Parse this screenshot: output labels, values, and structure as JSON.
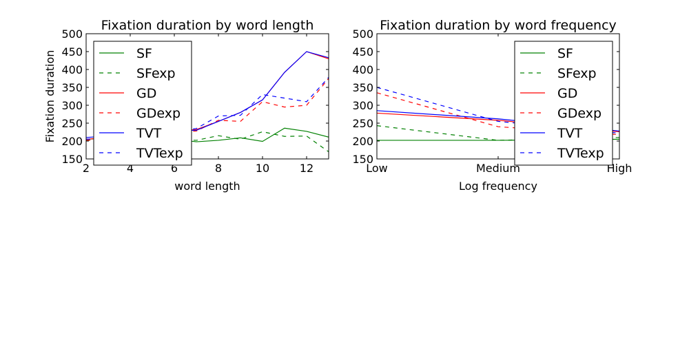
{
  "chart_data": [
    {
      "type": "line",
      "title": "Fixation duration by word length",
      "xlabel": "word length",
      "ylabel": "Fixation duration",
      "xlim": [
        2,
        13
      ],
      "ylim": [
        150,
        500
      ],
      "x_ticks": [
        2,
        4,
        6,
        8,
        10,
        12
      ],
      "y_ticks": [
        150,
        200,
        250,
        300,
        350,
        400,
        450,
        500
      ],
      "legend": "upper-left",
      "x": [
        2,
        3,
        4,
        5,
        6,
        7,
        8,
        9,
        10,
        11,
        12,
        13
      ],
      "series": [
        {
          "name": "SF",
          "color": "#008000",
          "dash": false,
          "values": [
            205,
            208,
            210,
            210,
            205,
            198,
            202,
            209,
            199,
            236,
            227,
            211
          ]
        },
        {
          "name": "SFexp",
          "color": "#008000",
          "dash": true,
          "values": [
            202,
            204,
            206,
            206,
            204,
            202,
            215,
            205,
            226,
            213,
            214,
            170
          ]
        },
        {
          "name": "GD",
          "color": "#ff0000",
          "dash": false,
          "values": [
            205,
            210,
            215,
            220,
            228,
            232,
            255,
            280,
            315,
            392,
            450,
            430
          ]
        },
        {
          "name": "GDexp",
          "color": "#ff0000",
          "dash": true,
          "values": [
            202,
            206,
            212,
            218,
            225,
            228,
            258,
            255,
            310,
            295,
            300,
            375
          ]
        },
        {
          "name": "TVT",
          "color": "#0000ff",
          "dash": false,
          "values": [
            210,
            214,
            218,
            222,
            230,
            230,
            255,
            280,
            315,
            392,
            450,
            433
          ]
        },
        {
          "name": "TVTexp",
          "color": "#0000ff",
          "dash": true,
          "values": [
            205,
            210,
            215,
            220,
            228,
            235,
            270,
            272,
            330,
            320,
            310,
            378
          ]
        }
      ]
    },
    {
      "type": "line",
      "title": "Fixation duration by word frequency",
      "xlabel": "Log frequency",
      "ylabel": "",
      "xlim": [
        0,
        2
      ],
      "ylim": [
        150,
        500
      ],
      "x_ticks": [
        "Low",
        "Medium",
        "High"
      ],
      "y_ticks": [
        150,
        200,
        250,
        300,
        350,
        400,
        450,
        500
      ],
      "legend": "upper-right",
      "x": [
        0,
        1,
        2
      ],
      "series": [
        {
          "name": "SF",
          "color": "#008000",
          "dash": false,
          "values": [
            202,
            202,
            205
          ]
        },
        {
          "name": "SFexp",
          "color": "#008000",
          "dash": true,
          "values": [
            243,
            202,
            210
          ]
        },
        {
          "name": "GD",
          "color": "#ff0000",
          "dash": false,
          "values": [
            278,
            258,
            226
          ]
        },
        {
          "name": "GDexp",
          "color": "#ff0000",
          "dash": true,
          "values": [
            335,
            240,
            218
          ]
        },
        {
          "name": "TVT",
          "color": "#0000ff",
          "dash": false,
          "values": [
            285,
            262,
            228
          ]
        },
        {
          "name": "TVTexp",
          "color": "#0000ff",
          "dash": true,
          "values": [
            350,
            255,
            222
          ]
        }
      ]
    }
  ]
}
